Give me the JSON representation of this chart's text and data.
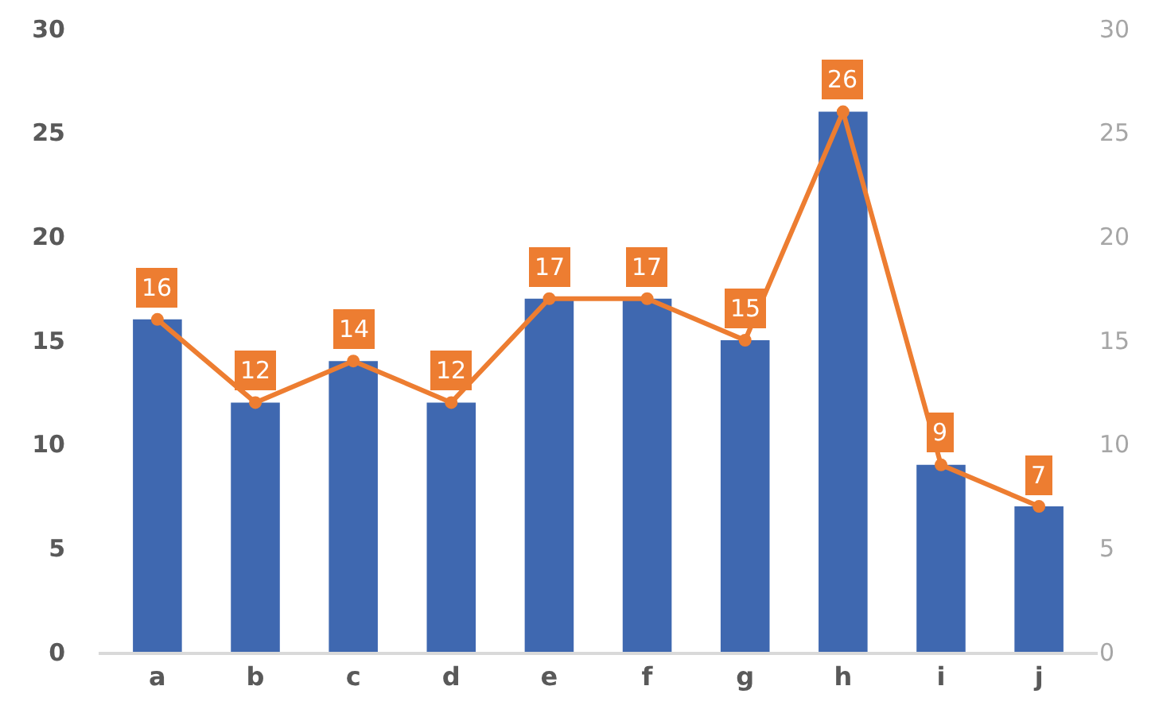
{
  "chart_data": {
    "type": "bar",
    "categories": [
      "a",
      "b",
      "c",
      "d",
      "e",
      "f",
      "g",
      "h",
      "i",
      "j"
    ],
    "series": [
      {
        "color": "#3f68b0",
        "values": [
          16,
          12,
          14,
          12,
          17,
          17,
          15,
          26,
          9,
          7
        ]
      },
      {
        "type": "line",
        "axis": "y2",
        "color": "#ed7d31",
        "values": [
          16,
          12,
          14,
          12,
          17,
          17,
          15,
          26,
          9,
          7
        ],
        "value_labels": [
          "16",
          "12",
          "14",
          "12",
          "17",
          "17",
          "15",
          "26",
          "9",
          "7"
        ]
      }
    ],
    "ylim": [
      0,
      30
    ],
    "yticks": [
      0,
      5,
      10,
      15,
      20,
      25,
      30
    ],
    "y2lim": [
      0,
      30
    ],
    "y2ticks": [
      0,
      5,
      10,
      15,
      20,
      25,
      30
    ],
    "grid": false,
    "marker": "circle",
    "line_style": "solid"
  }
}
